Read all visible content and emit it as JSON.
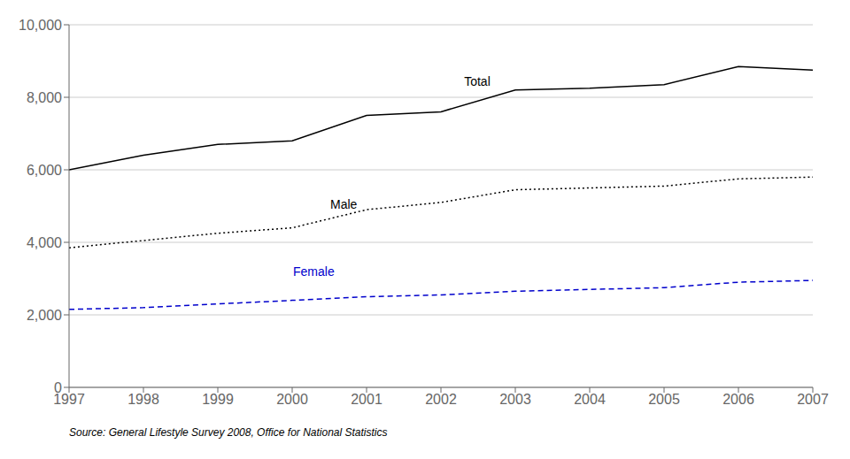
{
  "chart_data": {
    "type": "line",
    "x": [
      1997,
      1998,
      1999,
      2000,
      2001,
      2002,
      2003,
      2004,
      2005,
      2006,
      2007
    ],
    "xlim": [
      1997,
      2007
    ],
    "xticks": [
      1997,
      1998,
      1999,
      2000,
      2001,
      2002,
      2003,
      2004,
      2005,
      2006,
      2007
    ],
    "ylim": [
      0,
      10000
    ],
    "yticks": [
      0,
      {
        "value": 2000,
        "label": "2,000"
      },
      {
        "value": 4000,
        "label": "4,000"
      },
      {
        "value": 6000,
        "label": "6,000"
      },
      {
        "value": 8000,
        "label": "8,000"
      },
      {
        "value": 10000,
        "label": "10,000"
      }
    ],
    "grid": true,
    "series": [
      {
        "name": "Total",
        "color": "#000000",
        "line_style": "solid",
        "values": [
          6000,
          6400,
          6700,
          6800,
          7500,
          7600,
          8200,
          8250,
          8350,
          8850,
          8750
        ]
      },
      {
        "name": "Male",
        "color": "#000000",
        "line_style": "dotted",
        "values": [
          3850,
          4050,
          4250,
          4400,
          4900,
          5100,
          5450,
          5500,
          5550,
          5750,
          5800
        ]
      },
      {
        "name": "Female",
        "color": "#0000cc",
        "line_style": "dashed",
        "values": [
          2150,
          2200,
          2300,
          2400,
          2500,
          2550,
          2650,
          2700,
          2750,
          2900,
          2950
        ]
      }
    ],
    "annotations": [
      {
        "text": "Total",
        "x": 2002.3,
        "y": 8450,
        "color": "#000000"
      },
      {
        "text": "Male",
        "x": 2000.5,
        "y": 5050,
        "color": "#000000"
      },
      {
        "text": "Female",
        "x": 2000.0,
        "y": 3200,
        "color": "#0000cc"
      }
    ],
    "source": "Source: General Lifestyle Survey 2008, Office for National Statistics"
  }
}
